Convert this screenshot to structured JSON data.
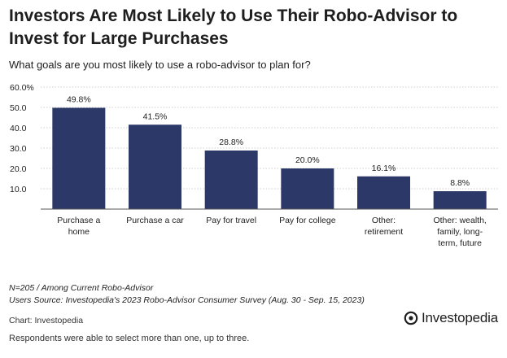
{
  "title": "Investors Are Most Likely to Use Their Robo-Advisor to Invest for Large Purchases",
  "subtitle": "What goals are you most likely to use a robo-advisor to plan for?",
  "notes": {
    "sample": "N=205 / Among Current Robo-Advisor",
    "source": "Users Source: Investopedia's 2023 Robo-Advisor Consumer Survey (Aug. 30 - Sep. 15, 2023)",
    "credit": "Chart: Investopedia",
    "footnote": "Respondents were able to select more than one, up to three."
  },
  "brand": {
    "name": "Investopedia",
    "icon": "investopedia-logo-icon"
  },
  "colors": {
    "bar": "#2c3968",
    "grid": "#cfcfcf",
    "axis": "#555555",
    "text": "#1e1e1e"
  },
  "chart_data": {
    "type": "bar",
    "categories": [
      [
        "Purchase a",
        "home"
      ],
      [
        "Purchase a car"
      ],
      [
        "Pay for travel"
      ],
      [
        "Pay for college"
      ],
      [
        "Other:",
        "retirement"
      ],
      [
        "Other: wealth,",
        "family, long-",
        "term, future"
      ]
    ],
    "values": [
      49.8,
      41.5,
      28.8,
      20.0,
      16.1,
      8.8
    ],
    "data_labels": [
      "49.8%",
      "41.5%",
      "28.8%",
      "20.0%",
      "16.1%",
      "8.8%"
    ],
    "yticks": [
      10,
      20,
      30,
      40,
      50,
      60
    ],
    "ytick_labels": [
      "10.0",
      "20.0",
      "30.0",
      "40.0",
      "50.0",
      "60.0%"
    ],
    "ylim": [
      0,
      60
    ],
    "grid": true,
    "xlabel": "",
    "ylabel": ""
  }
}
